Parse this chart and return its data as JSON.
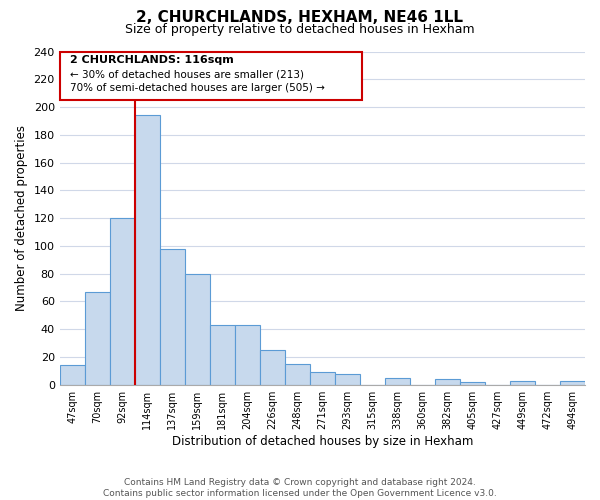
{
  "title": "2, CHURCHLANDS, HEXHAM, NE46 1LL",
  "subtitle": "Size of property relative to detached houses in Hexham",
  "xlabel": "Distribution of detached houses by size in Hexham",
  "ylabel": "Number of detached properties",
  "bar_labels": [
    "47sqm",
    "70sqm",
    "92sqm",
    "114sqm",
    "137sqm",
    "159sqm",
    "181sqm",
    "204sqm",
    "226sqm",
    "248sqm",
    "271sqm",
    "293sqm",
    "315sqm",
    "338sqm",
    "360sqm",
    "382sqm",
    "405sqm",
    "427sqm",
    "449sqm",
    "472sqm",
    "494sqm"
  ],
  "bar_values": [
    14,
    67,
    120,
    194,
    98,
    80,
    43,
    43,
    25,
    15,
    9,
    8,
    0,
    5,
    0,
    4,
    2,
    0,
    3,
    0,
    3
  ],
  "bar_color": "#c7d9ed",
  "bar_edge_color": "#5b9bd5",
  "highlight_index": 3,
  "highlight_line_color": "#cc0000",
  "ylim": [
    0,
    240
  ],
  "yticks": [
    0,
    20,
    40,
    60,
    80,
    100,
    120,
    140,
    160,
    180,
    200,
    220,
    240
  ],
  "annotation_title": "2 CHURCHLANDS: 116sqm",
  "annotation_line1": "← 30% of detached houses are smaller (213)",
  "annotation_line2": "70% of semi-detached houses are larger (505) →",
  "annotation_box_color": "#ffffff",
  "annotation_box_edge_color": "#cc0000",
  "footer_line1": "Contains HM Land Registry data © Crown copyright and database right 2024.",
  "footer_line2": "Contains public sector information licensed under the Open Government Licence v3.0.",
  "background_color": "#ffffff",
  "grid_color": "#d0d8e8"
}
